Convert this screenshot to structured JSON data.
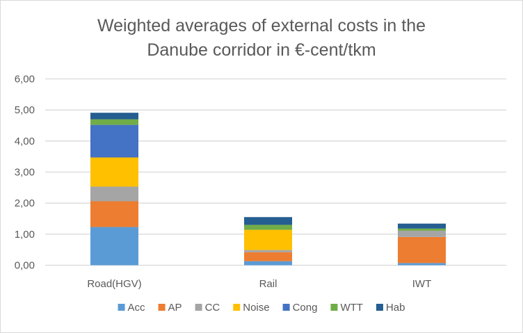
{
  "chart_data": {
    "type": "bar",
    "stacked": true,
    "title_lines": [
      "Weighted averages of external costs in the",
      "Danube corridor in €-cent/tkm"
    ],
    "xlabel": "",
    "ylabel": "",
    "categories": [
      "Road(HGV)",
      "Rail",
      "IWT"
    ],
    "ylim": [
      0,
      6
    ],
    "yticks": [
      0,
      1,
      2,
      3,
      4,
      5,
      6
    ],
    "ytick_labels": [
      "0,00",
      "1,00",
      "2,00",
      "3,00",
      "4,00",
      "5,00",
      "6,00"
    ],
    "grid": true,
    "legend_position": "bottom",
    "series": [
      {
        "name": "Acc",
        "color": "#5b9bd5",
        "values": [
          1.23,
          0.13,
          0.07
        ]
      },
      {
        "name": "AP",
        "color": "#ed7d31",
        "values": [
          0.83,
          0.29,
          0.84
        ]
      },
      {
        "name": "CC",
        "color": "#a5a5a5",
        "values": [
          0.47,
          0.07,
          0.2
        ]
      },
      {
        "name": "Noise",
        "color": "#ffc000",
        "values": [
          0.94,
          0.65,
          0.0
        ]
      },
      {
        "name": "Cong",
        "color": "#4472c4",
        "values": [
          1.05,
          0.0,
          0.0
        ]
      },
      {
        "name": "WTT",
        "color": "#70ad47",
        "values": [
          0.18,
          0.16,
          0.07
        ]
      },
      {
        "name": "Hab",
        "color": "#255e91",
        "values": [
          0.21,
          0.25,
          0.16
        ]
      }
    ]
  }
}
